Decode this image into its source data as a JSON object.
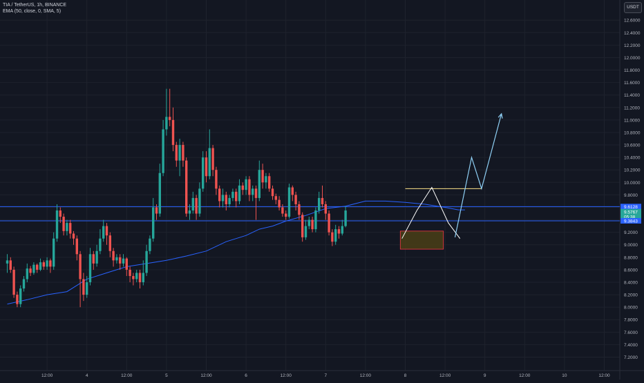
{
  "header": {
    "symbol_line": "TIA / TetherUS, 1h, BINANCE",
    "indicator_line": "EMA (50, close, 0, SMA, 5)"
  },
  "currency_button": "USDT",
  "colors": {
    "background": "#131722",
    "up": "#26a69a",
    "down": "#ef5350",
    "ema": "#2962ff",
    "level": "#2a62ff",
    "drawing": "#8fd0f5",
    "resistance": "#ffe58a",
    "zone_fill": "#4a3e16",
    "zone_border": "#f23645"
  },
  "chart_data": {
    "type": "candlestick",
    "ylim": [
      7.2,
      12.8
    ],
    "y_ticks": [
      "12.6000",
      "12.4000",
      "12.2000",
      "12.0000",
      "11.8000",
      "11.6000",
      "11.4000",
      "11.2000",
      "11.0000",
      "10.8000",
      "10.6000",
      "10.4000",
      "10.2000",
      "10.0000",
      "9.8000",
      "9.6000",
      "9.4000",
      "9.2000",
      "9.0000",
      "8.8000",
      "8.6000",
      "8.4000",
      "8.2000",
      "8.0000",
      "7.8000",
      "7.6000",
      "7.4000",
      "7.2000"
    ],
    "x_ticks": [
      "12:00",
      "4",
      "12:00",
      "5",
      "12:00",
      "6",
      "12:00",
      "7",
      "12:00",
      "8",
      "12:00",
      "9",
      "12:00",
      "10",
      "12:00"
    ],
    "x_tick_hours": [
      12,
      24,
      36,
      48,
      60,
      72,
      84,
      96,
      108,
      120,
      132,
      144,
      156,
      168,
      180
    ],
    "price_labels": [
      {
        "text": "9.6128",
        "price": 9.6128,
        "color": "#2a62ff"
      },
      {
        "text": "9.5767",
        "price": 9.5767,
        "color": "#26a69a"
      },
      {
        "text": "05:38",
        "price": 9.5,
        "color": "#26a69a"
      },
      {
        "text": "9.3843",
        "price": 9.3843,
        "color": "#2a62ff"
      }
    ],
    "horizontal_levels": [
      9.6128,
      9.3843
    ],
    "resistance_line": {
      "from_hour": 120,
      "to_hour": 143,
      "price": 9.9
    },
    "zone": {
      "from_hour": 118.5,
      "to_hour": 131.5,
      "top": 9.22,
      "bottom": 8.93
    },
    "zigzag": [
      [
        119,
        9.1
      ],
      [
        123.5,
        9.55
      ],
      [
        128,
        9.92
      ],
      [
        133,
        9.35
      ],
      [
        136.5,
        9.1
      ]
    ],
    "projection": [
      [
        135,
        9.12
      ],
      [
        140,
        10.4
      ],
      [
        143,
        9.9
      ],
      [
        149,
        11.1
      ]
    ],
    "ema": [
      [
        0,
        8.05
      ],
      [
        6,
        8.12
      ],
      [
        12,
        8.2
      ],
      [
        18,
        8.25
      ],
      [
        24,
        8.45
      ],
      [
        30,
        8.55
      ],
      [
        36,
        8.65
      ],
      [
        42,
        8.7
      ],
      [
        48,
        8.75
      ],
      [
        54,
        8.82
      ],
      [
        60,
        8.9
      ],
      [
        66,
        9.05
      ],
      [
        72,
        9.15
      ],
      [
        76,
        9.25
      ],
      [
        80,
        9.3
      ],
      [
        84,
        9.38
      ],
      [
        90,
        9.47
      ],
      [
        96,
        9.58
      ],
      [
        102,
        9.62
      ],
      [
        108,
        9.7
      ],
      [
        114,
        9.7
      ],
      [
        120,
        9.68
      ],
      [
        126,
        9.65
      ],
      [
        132,
        9.6
      ],
      [
        136,
        9.56
      ],
      [
        138,
        9.56
      ]
    ],
    "candles": [
      [
        0,
        8.7,
        8.75,
        8.85,
        8.55
      ],
      [
        1,
        8.75,
        8.6,
        8.8,
        8.55
      ],
      [
        2,
        8.6,
        8.2,
        8.65,
        8.15
      ],
      [
        3,
        8.2,
        8.05,
        8.25,
        8.0
      ],
      [
        4,
        8.05,
        8.3,
        8.35,
        8.0
      ],
      [
        5,
        8.3,
        8.45,
        8.5,
        8.25
      ],
      [
        6,
        8.45,
        8.62,
        8.7,
        8.4
      ],
      [
        7,
        8.62,
        8.55,
        8.66,
        8.5
      ],
      [
        8,
        8.55,
        8.68,
        8.72,
        8.52
      ],
      [
        9,
        8.68,
        8.6,
        8.7,
        8.55
      ],
      [
        10,
        8.6,
        8.72,
        8.78,
        8.58
      ],
      [
        11,
        8.72,
        8.65,
        8.75,
        8.6
      ],
      [
        12,
        8.65,
        8.75,
        8.8,
        8.6
      ],
      [
        13,
        8.75,
        8.65,
        8.78,
        8.55
      ],
      [
        14,
        8.65,
        9.1,
        9.2,
        8.6
      ],
      [
        15,
        9.1,
        9.55,
        9.65,
        9.05
      ],
      [
        16,
        9.55,
        9.45,
        9.6,
        9.35
      ],
      [
        17,
        9.45,
        9.22,
        9.5,
        9.15
      ],
      [
        18,
        9.22,
        9.35,
        9.4,
        9.15
      ],
      [
        19,
        9.35,
        9.18,
        9.4,
        9.1
      ],
      [
        20,
        9.18,
        9.1,
        9.22,
        9.0
      ],
      [
        21,
        9.1,
        8.85,
        9.15,
        8.75
      ],
      [
        22,
        8.85,
        8.45,
        8.9,
        8.0
      ],
      [
        23,
        8.45,
        8.2,
        8.55,
        8.1
      ],
      [
        24,
        8.2,
        8.4,
        8.5,
        8.15
      ],
      [
        25,
        8.4,
        8.85,
        8.95,
        8.35
      ],
      [
        26,
        8.85,
        8.7,
        8.9,
        8.6
      ],
      [
        27,
        8.7,
        8.9,
        9.0,
        8.65
      ],
      [
        28,
        8.9,
        9.1,
        9.25,
        8.85
      ],
      [
        29,
        9.1,
        9.3,
        9.4,
        9.05
      ],
      [
        30,
        9.3,
        9.15,
        9.35,
        9.0
      ],
      [
        31,
        9.15,
        8.9,
        9.2,
        8.8
      ],
      [
        32,
        8.9,
        8.75,
        8.95,
        8.65
      ],
      [
        33,
        8.75,
        8.8,
        8.85,
        8.7
      ],
      [
        34,
        8.8,
        8.7,
        8.85,
        8.6
      ],
      [
        35,
        8.7,
        8.78,
        8.85,
        8.65
      ],
      [
        36,
        8.78,
        8.6,
        8.8,
        8.5
      ],
      [
        37,
        8.6,
        8.5,
        8.65,
        8.4
      ],
      [
        38,
        8.5,
        8.45,
        8.55,
        8.35
      ],
      [
        39,
        8.45,
        8.55,
        8.6,
        8.4
      ],
      [
        40,
        8.55,
        8.4,
        8.6,
        8.3
      ],
      [
        41,
        8.4,
        8.55,
        8.75,
        8.35
      ],
      [
        42,
        8.55,
        8.9,
        9.0,
        8.5
      ],
      [
        43,
        8.9,
        9.1,
        9.15,
        8.85
      ],
      [
        44,
        9.1,
        9.6,
        9.75,
        9.05
      ],
      [
        45,
        9.6,
        9.5,
        9.65,
        9.4
      ],
      [
        46,
        9.5,
        10.15,
        10.3,
        9.45
      ],
      [
        47,
        10.15,
        10.85,
        11.0,
        10.1
      ],
      [
        48,
        10.85,
        11.05,
        11.5,
        10.75
      ],
      [
        49,
        11.05,
        11.0,
        11.5,
        10.9
      ],
      [
        50,
        11.0,
        10.6,
        11.2,
        10.5
      ],
      [
        51,
        10.6,
        10.35,
        10.65,
        10.25
      ],
      [
        52,
        10.35,
        10.6,
        10.7,
        10.1
      ],
      [
        53,
        10.6,
        10.35,
        10.65,
        10.25
      ],
      [
        54,
        10.35,
        9.5,
        10.4,
        9.45
      ],
      [
        55,
        9.5,
        9.55,
        9.65,
        9.4
      ],
      [
        56,
        9.55,
        9.75,
        9.85,
        9.5
      ],
      [
        57,
        9.75,
        9.5,
        9.8,
        9.4
      ],
      [
        58,
        9.5,
        9.9,
        10.0,
        9.45
      ],
      [
        59,
        9.9,
        10.4,
        10.5,
        9.85
      ],
      [
        60,
        10.4,
        10.1,
        10.5,
        10.0
      ],
      [
        61,
        10.1,
        10.55,
        10.85,
        10.05
      ],
      [
        62,
        10.55,
        10.2,
        10.6,
        10.1
      ],
      [
        63,
        10.2,
        9.9,
        10.25,
        9.8
      ],
      [
        64,
        9.9,
        9.7,
        9.95,
        9.6
      ],
      [
        65,
        9.7,
        9.8,
        9.9,
        9.6
      ],
      [
        66,
        9.8,
        9.65,
        9.85,
        9.55
      ],
      [
        67,
        9.65,
        9.75,
        9.8,
        9.6
      ],
      [
        68,
        9.75,
        9.85,
        9.9,
        9.7
      ],
      [
        69,
        9.85,
        9.7,
        9.9,
        9.6
      ],
      [
        70,
        9.7,
        9.95,
        10.05,
        9.65
      ],
      [
        71,
        9.95,
        9.88,
        10.0,
        9.8
      ],
      [
        72,
        9.88,
        10.05,
        10.1,
        9.8
      ],
      [
        73,
        10.05,
        9.8,
        10.1,
        9.7
      ],
      [
        74,
        9.8,
        9.9,
        9.95,
        9.7
      ],
      [
        75,
        9.9,
        9.75,
        9.95,
        9.4
      ],
      [
        76,
        9.75,
        10.2,
        10.35,
        9.7
      ],
      [
        77,
        10.2,
        10.0,
        10.3,
        9.9
      ],
      [
        78,
        10.0,
        10.1,
        10.15,
        9.9
      ],
      [
        79,
        10.1,
        9.9,
        10.15,
        9.85
      ],
      [
        80,
        9.9,
        9.78,
        9.95,
        9.72
      ],
      [
        81,
        9.78,
        9.72,
        9.82,
        9.65
      ],
      [
        82,
        9.72,
        9.6,
        9.78,
        9.55
      ],
      [
        83,
        9.6,
        9.5,
        9.65,
        9.45
      ],
      [
        84,
        9.5,
        9.45,
        9.55,
        9.4
      ],
      [
        85,
        9.45,
        9.92,
        9.98,
        9.42
      ],
      [
        86,
        9.92,
        9.8,
        9.95,
        9.7
      ],
      [
        87,
        9.8,
        9.65,
        9.85,
        9.55
      ],
      [
        88,
        9.65,
        9.48,
        9.7,
        9.4
      ],
      [
        89,
        9.48,
        9.12,
        9.52,
        9.05
      ],
      [
        90,
        9.12,
        9.3,
        9.4,
        9.08
      ],
      [
        91,
        9.3,
        9.4,
        9.45,
        9.25
      ],
      [
        92,
        9.4,
        9.25,
        9.45,
        9.2
      ],
      [
        93,
        9.25,
        9.55,
        9.6,
        9.2
      ],
      [
        94,
        9.55,
        9.75,
        9.85,
        9.5
      ],
      [
        95,
        9.75,
        9.65,
        9.95,
        9.6
      ],
      [
        96,
        9.65,
        9.5,
        9.7,
        9.4
      ],
      [
        97,
        9.5,
        9.2,
        9.55,
        9.15
      ],
      [
        98,
        9.2,
        9.05,
        9.25,
        8.98
      ],
      [
        99,
        9.05,
        9.25,
        9.32,
        9.0
      ],
      [
        100,
        9.25,
        9.18,
        9.3,
        9.1
      ],
      [
        101,
        9.18,
        9.3,
        9.4,
        9.15
      ],
      [
        102,
        9.3,
        9.55,
        9.62,
        9.28
      ]
    ]
  }
}
